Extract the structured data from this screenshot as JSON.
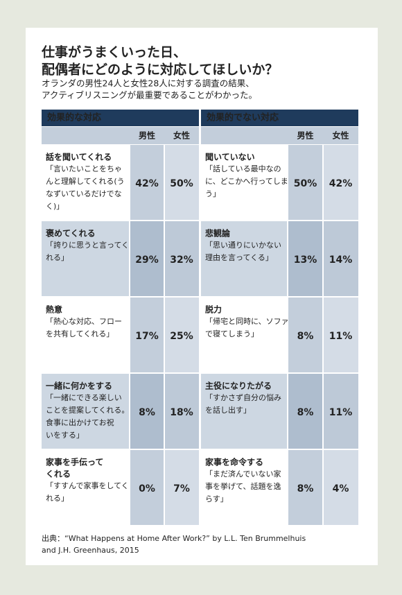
{
  "header": {
    "title_lines": [
      "仕事がうまくいった日、",
      "配偶者にどのように対応してほしいか？"
    ],
    "subtitle_lines": [
      "オランダの男性24人と女性28人に対する調査の結果、",
      "アクティブリスニングが最重要であることがわかった。"
    ]
  },
  "table": {
    "sections": [
      {
        "heading": "効果的な対応",
        "columns": [
          "男性",
          "女性"
        ],
        "rows": [
          {
            "label_lines": [
              "話を聞いてくれる"
            ],
            "quote_lines": [
              "「言いたいことをちゃ",
              "んと理解してくれる(う",
              "なずいているだけでな",
              "く)」"
            ],
            "values": [
              "42%",
              "50%"
            ]
          },
          {
            "label_lines": [
              "褒めてくれる"
            ],
            "quote_lines": [
              "「誇りに思うと言ってく",
              "れる」"
            ],
            "values": [
              "29%",
              "32%"
            ]
          },
          {
            "label_lines": [
              "熱意"
            ],
            "quote_lines": [
              "「熱心な対応、フロー",
              "を共有してくれる」"
            ],
            "values": [
              "17%",
              "25%"
            ]
          },
          {
            "label_lines": [
              "一緒に何かをする"
            ],
            "quote_lines": [
              "「一緒にできる楽しい",
              "ことを提案してくれる。",
              "食事に出かけてお祝",
              "いをする」"
            ],
            "values": [
              "8%",
              "18%"
            ]
          },
          {
            "label_lines": [
              "家事を手伝って",
              "くれる"
            ],
            "quote_lines": [
              "「すすんで家事をしてく",
              "れる」"
            ],
            "values": [
              "0%",
              "7%"
            ]
          }
        ]
      },
      {
        "heading": "効果的でない対応",
        "columns": [
          "男性",
          "女性"
        ],
        "rows": [
          {
            "label_lines": [
              "聞いていない"
            ],
            "quote_lines": [
              "「話している最中なの",
              "に、どこかへ行ってしま",
              "う」"
            ],
            "values": [
              "50%",
              "42%"
            ]
          },
          {
            "label_lines": [
              "悲観論"
            ],
            "quote_lines": [
              "「思い通りにいかない",
              "理由を言ってくる」"
            ],
            "values": [
              "13%",
              "14%"
            ]
          },
          {
            "label_lines": [
              "脱力"
            ],
            "quote_lines": [
              "「帰宅と同時に、ソファ",
              "で寝てしまう」"
            ],
            "values": [
              "8%",
              "11%"
            ]
          },
          {
            "label_lines": [
              "主役になりたがる"
            ],
            "quote_lines": [
              "「すかさず自分の悩み",
              "を話し出す」"
            ],
            "values": [
              "8%",
              "11%"
            ]
          },
          {
            "label_lines": [
              "家事を命令する"
            ],
            "quote_lines": [
              "「まだ済んでいない家",
              "事を挙げて、話題を逸",
              "らす」"
            ],
            "values": [
              "8%",
              "4%"
            ]
          }
        ]
      }
    ]
  },
  "footer": {
    "source_lines": [
      "出典：“What Happens at Home After Work?” by L.L. Ten Brummelhuis",
      "and J.H. Greenhaus, 2015"
    ]
  }
}
